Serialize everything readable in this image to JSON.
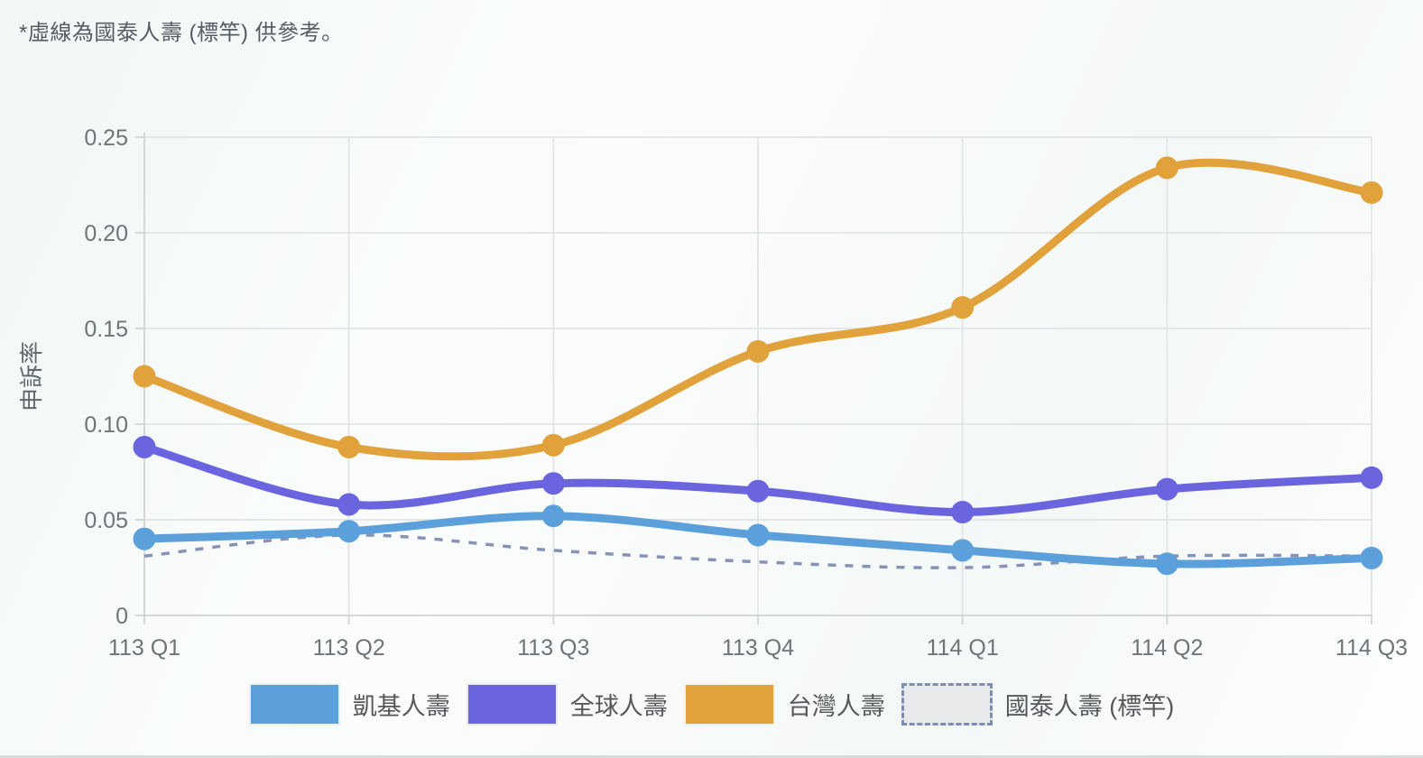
{
  "note": "*虛線為國泰人壽 (標竿) 供參考。",
  "chart_data": {
    "type": "line",
    "title": "",
    "xlabel": "",
    "ylabel": "申訴率",
    "ylim": [
      0,
      0.25
    ],
    "grid": true,
    "legend_position": "bottom",
    "line_style": "smooth",
    "categories": [
      "113 Q1",
      "113 Q2",
      "113 Q3",
      "113 Q4",
      "114 Q1",
      "114 Q2",
      "114 Q3"
    ],
    "ytick_values": [
      0,
      0.05,
      0.1,
      0.15,
      0.2,
      0.25
    ],
    "ytick_labels": [
      "0",
      "0.05",
      "0.10",
      "0.15",
      "0.20",
      "0.25"
    ],
    "series": [
      {
        "name": "凱基人壽",
        "color": "#5b9fdb",
        "style": "solid",
        "values": [
          0.04,
          0.044,
          0.052,
          0.042,
          0.034,
          0.027,
          0.03
        ]
      },
      {
        "name": "全球人壽",
        "color": "#6a65df",
        "style": "solid",
        "values": [
          0.088,
          0.058,
          0.069,
          0.065,
          0.054,
          0.066,
          0.072
        ]
      },
      {
        "name": "台灣人壽",
        "color": "#e1a23c",
        "style": "solid",
        "values": [
          0.125,
          0.088,
          0.089,
          0.138,
          0.161,
          0.234,
          0.221
        ]
      },
      {
        "name": "國泰人壽 (標竿)",
        "color": "#8792b7",
        "style": "dashed",
        "values": [
          0.031,
          0.042,
          0.034,
          0.028,
          0.025,
          0.031,
          0.031
        ]
      }
    ]
  }
}
